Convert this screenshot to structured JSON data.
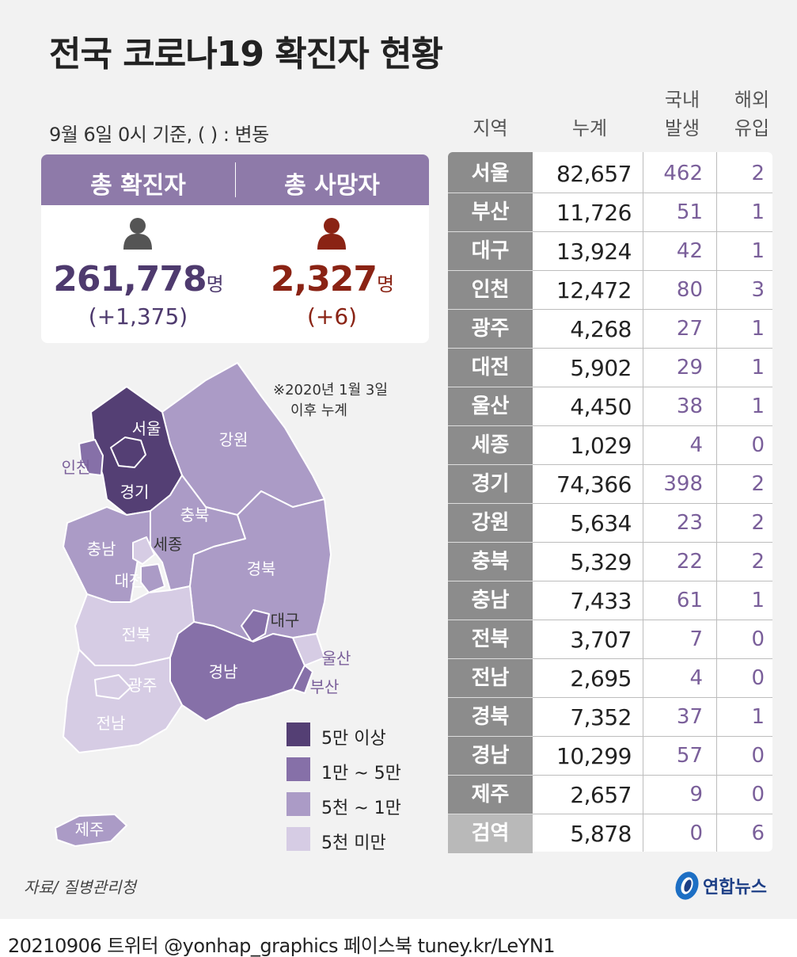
{
  "title": "전국 코로나19 확진자 현황",
  "subtitle": "9월 6일 0시 기준, ( ) : 변동",
  "totals": {
    "confirmed_label": "총 확진자",
    "confirmed_value": "261,778",
    "confirmed_unit": "명",
    "confirmed_change": "(+1,375)",
    "deaths_label": "총 사망자",
    "deaths_value": "2,327",
    "deaths_unit": "명",
    "deaths_change": "(+6)",
    "icons": {
      "confirmed": "person-icon",
      "deaths": "person-icon"
    },
    "colors": {
      "confirmed": "#4e3a6e",
      "deaths": "#8a2314",
      "header": "#8e7aa9"
    }
  },
  "map": {
    "note_line1": "※2020년 1월 3일",
    "note_line2": "이후 누계",
    "labels": {
      "seoul": "서울",
      "incheon": "인천",
      "gyeonggi": "경기",
      "gangwon": "강원",
      "chungbuk": "충북",
      "sejong": "세종",
      "chungnam": "충남",
      "daejeon": "대전",
      "gyeongbuk": "경북",
      "daegu": "대구",
      "ulsan": "울산",
      "busan": "부산",
      "jeonbuk": "전북",
      "gwangju": "광주",
      "jeonnam": "전남",
      "gyeongnam": "경남",
      "jeju": "제주"
    },
    "legend": [
      {
        "label": "5만 이상",
        "color": "#543f74"
      },
      {
        "label": "1만 ~ 5만",
        "color": "#8670a8"
      },
      {
        "label": "5천 ~ 1만",
        "color": "#ab9bc6"
      },
      {
        "label": "5천 미만",
        "color": "#d6cce4"
      }
    ]
  },
  "table": {
    "headers": {
      "region": "지역",
      "cumulative": "누계",
      "domestic_1": "국내",
      "domestic_2": "발생",
      "overseas_1": "해외",
      "overseas_2": "유입"
    }
  },
  "chart_data": {
    "type": "table",
    "columns": [
      "지역",
      "누계",
      "국내 발생",
      "해외 유입"
    ],
    "rows": [
      {
        "region": "서울",
        "cumulative": "82,657",
        "domestic": "462",
        "overseas": "2"
      },
      {
        "region": "부산",
        "cumulative": "11,726",
        "domestic": "51",
        "overseas": "1"
      },
      {
        "region": "대구",
        "cumulative": "13,924",
        "domestic": "42",
        "overseas": "1"
      },
      {
        "region": "인천",
        "cumulative": "12,472",
        "domestic": "80",
        "overseas": "3"
      },
      {
        "region": "광주",
        "cumulative": "4,268",
        "domestic": "27",
        "overseas": "1"
      },
      {
        "region": "대전",
        "cumulative": "5,902",
        "domestic": "29",
        "overseas": "1"
      },
      {
        "region": "울산",
        "cumulative": "4,450",
        "domestic": "38",
        "overseas": "1"
      },
      {
        "region": "세종",
        "cumulative": "1,029",
        "domestic": "4",
        "overseas": "0"
      },
      {
        "region": "경기",
        "cumulative": "74,366",
        "domestic": "398",
        "overseas": "2"
      },
      {
        "region": "강원",
        "cumulative": "5,634",
        "domestic": "23",
        "overseas": "2"
      },
      {
        "region": "충북",
        "cumulative": "5,329",
        "domestic": "22",
        "overseas": "2"
      },
      {
        "region": "충남",
        "cumulative": "7,433",
        "domestic": "61",
        "overseas": "1"
      },
      {
        "region": "전북",
        "cumulative": "3,707",
        "domestic": "7",
        "overseas": "0"
      },
      {
        "region": "전남",
        "cumulative": "2,695",
        "domestic": "4",
        "overseas": "0"
      },
      {
        "region": "경북",
        "cumulative": "7,352",
        "domestic": "37",
        "overseas": "1"
      },
      {
        "region": "경남",
        "cumulative": "10,299",
        "domestic": "57",
        "overseas": "0"
      },
      {
        "region": "제주",
        "cumulative": "2,657",
        "domestic": "9",
        "overseas": "0"
      },
      {
        "region": "검역",
        "cumulative": "5,878",
        "domestic": "0",
        "overseas": "6"
      }
    ]
  },
  "source": "자료/ 질병관리청",
  "logo_text": "연합뉴스",
  "footer": "20210906 트위터 @yonhap_graphics  페이스북 tuney.kr/LeYN1"
}
